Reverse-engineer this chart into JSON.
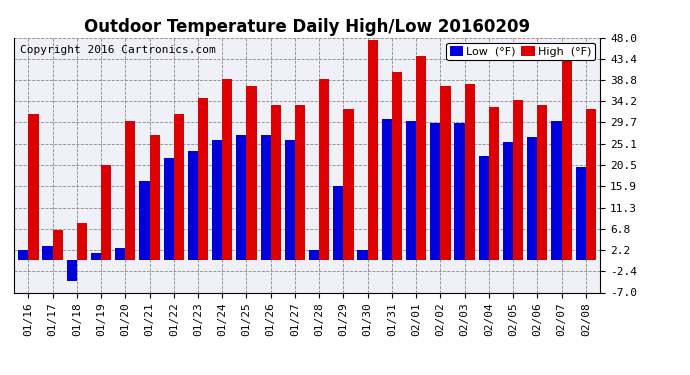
{
  "title": "Outdoor Temperature Daily High/Low 20160209",
  "copyright": "Copyright 2016 Cartronics.com",
  "ylabel_right_ticks": [
    -7.0,
    -2.4,
    2.2,
    6.8,
    11.3,
    15.9,
    20.5,
    25.1,
    29.7,
    34.2,
    38.8,
    43.4,
    48.0
  ],
  "ylim": [
    -7.0,
    48.0
  ],
  "dates": [
    "01/16",
    "01/17",
    "01/18",
    "01/19",
    "01/20",
    "01/21",
    "01/22",
    "01/23",
    "01/24",
    "01/25",
    "01/26",
    "01/27",
    "01/28",
    "01/29",
    "01/30",
    "01/31",
    "02/01",
    "02/02",
    "02/03",
    "02/04",
    "02/05",
    "02/06",
    "02/07",
    "02/08"
  ],
  "low": [
    2.2,
    3.0,
    -4.5,
    1.5,
    2.5,
    17.0,
    22.0,
    23.5,
    26.0,
    27.0,
    27.0,
    26.0,
    2.2,
    16.0,
    2.2,
    30.5,
    30.0,
    29.5,
    29.5,
    22.5,
    25.5,
    26.5,
    30.0,
    20.0
  ],
  "high": [
    31.5,
    6.5,
    8.0,
    20.5,
    30.0,
    27.0,
    31.5,
    35.0,
    39.0,
    37.5,
    33.5,
    33.5,
    39.0,
    32.5,
    47.5,
    40.5,
    44.0,
    37.5,
    38.0,
    33.0,
    34.5,
    33.5,
    45.5,
    32.5
  ],
  "low_color": "#0000dd",
  "high_color": "#dd0000",
  "bg_color": "#ffffff",
  "plot_bg_color": "#f0f0f8",
  "grid_color": "#888888",
  "title_fontsize": 12,
  "copyright_fontsize": 8,
  "tick_fontsize": 8,
  "bar_width": 0.42
}
